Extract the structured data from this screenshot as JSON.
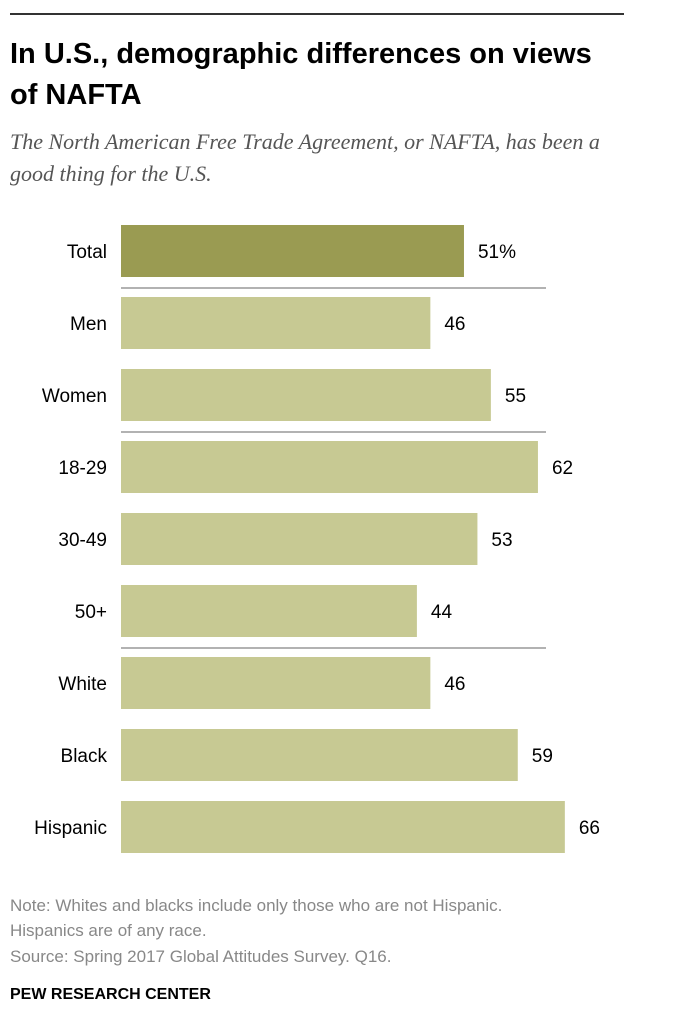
{
  "header": {
    "title": "In U.S., demographic differences on views of NAFTA",
    "subtitle": "The North American Free Trade Agreement, or NAFTA, has been a good thing for the U.S."
  },
  "chart_data": {
    "type": "bar",
    "orientation": "horizontal",
    "title": "In U.S., demographic differences on views of NAFTA",
    "subtitle": "The North American Free Trade Agreement, or NAFTA, has been a good thing for the U.S.",
    "categories": [
      "Total",
      "Men",
      "Women",
      "18-29",
      "30-49",
      "50+",
      "White",
      "Black",
      "Hispanic"
    ],
    "values": [
      51,
      46,
      55,
      62,
      53,
      44,
      46,
      59,
      66
    ],
    "value_labels": [
      "51%",
      "46",
      "55",
      "62",
      "53",
      "44",
      "46",
      "59",
      "66"
    ],
    "groups": [
      [
        "Total"
      ],
      [
        "Men",
        "Women"
      ],
      [
        "18-29",
        "30-49",
        "50+"
      ],
      [
        "White",
        "Black",
        "Hispanic"
      ]
    ],
    "highlight_category": "Total",
    "xlim": [
      0,
      100
    ],
    "xlabel": "",
    "ylabel": "",
    "grid": false,
    "legend": "none"
  },
  "colors": {
    "highlight_bar": "#9a9b52",
    "bar": "#c7c993",
    "divider": "#999999",
    "label_text": "#000000",
    "note_text": "#888888",
    "title_text": "#000000",
    "subtitle_text": "#555555"
  },
  "footer": {
    "note_line1": "Note: Whites and blacks include only those who are not Hispanic.",
    "note_line2": "Hispanics are of any race.",
    "source": "Source: Spring 2017 Global Attitudes Survey. Q16.",
    "brand": "PEW RESEARCH CENTER"
  }
}
